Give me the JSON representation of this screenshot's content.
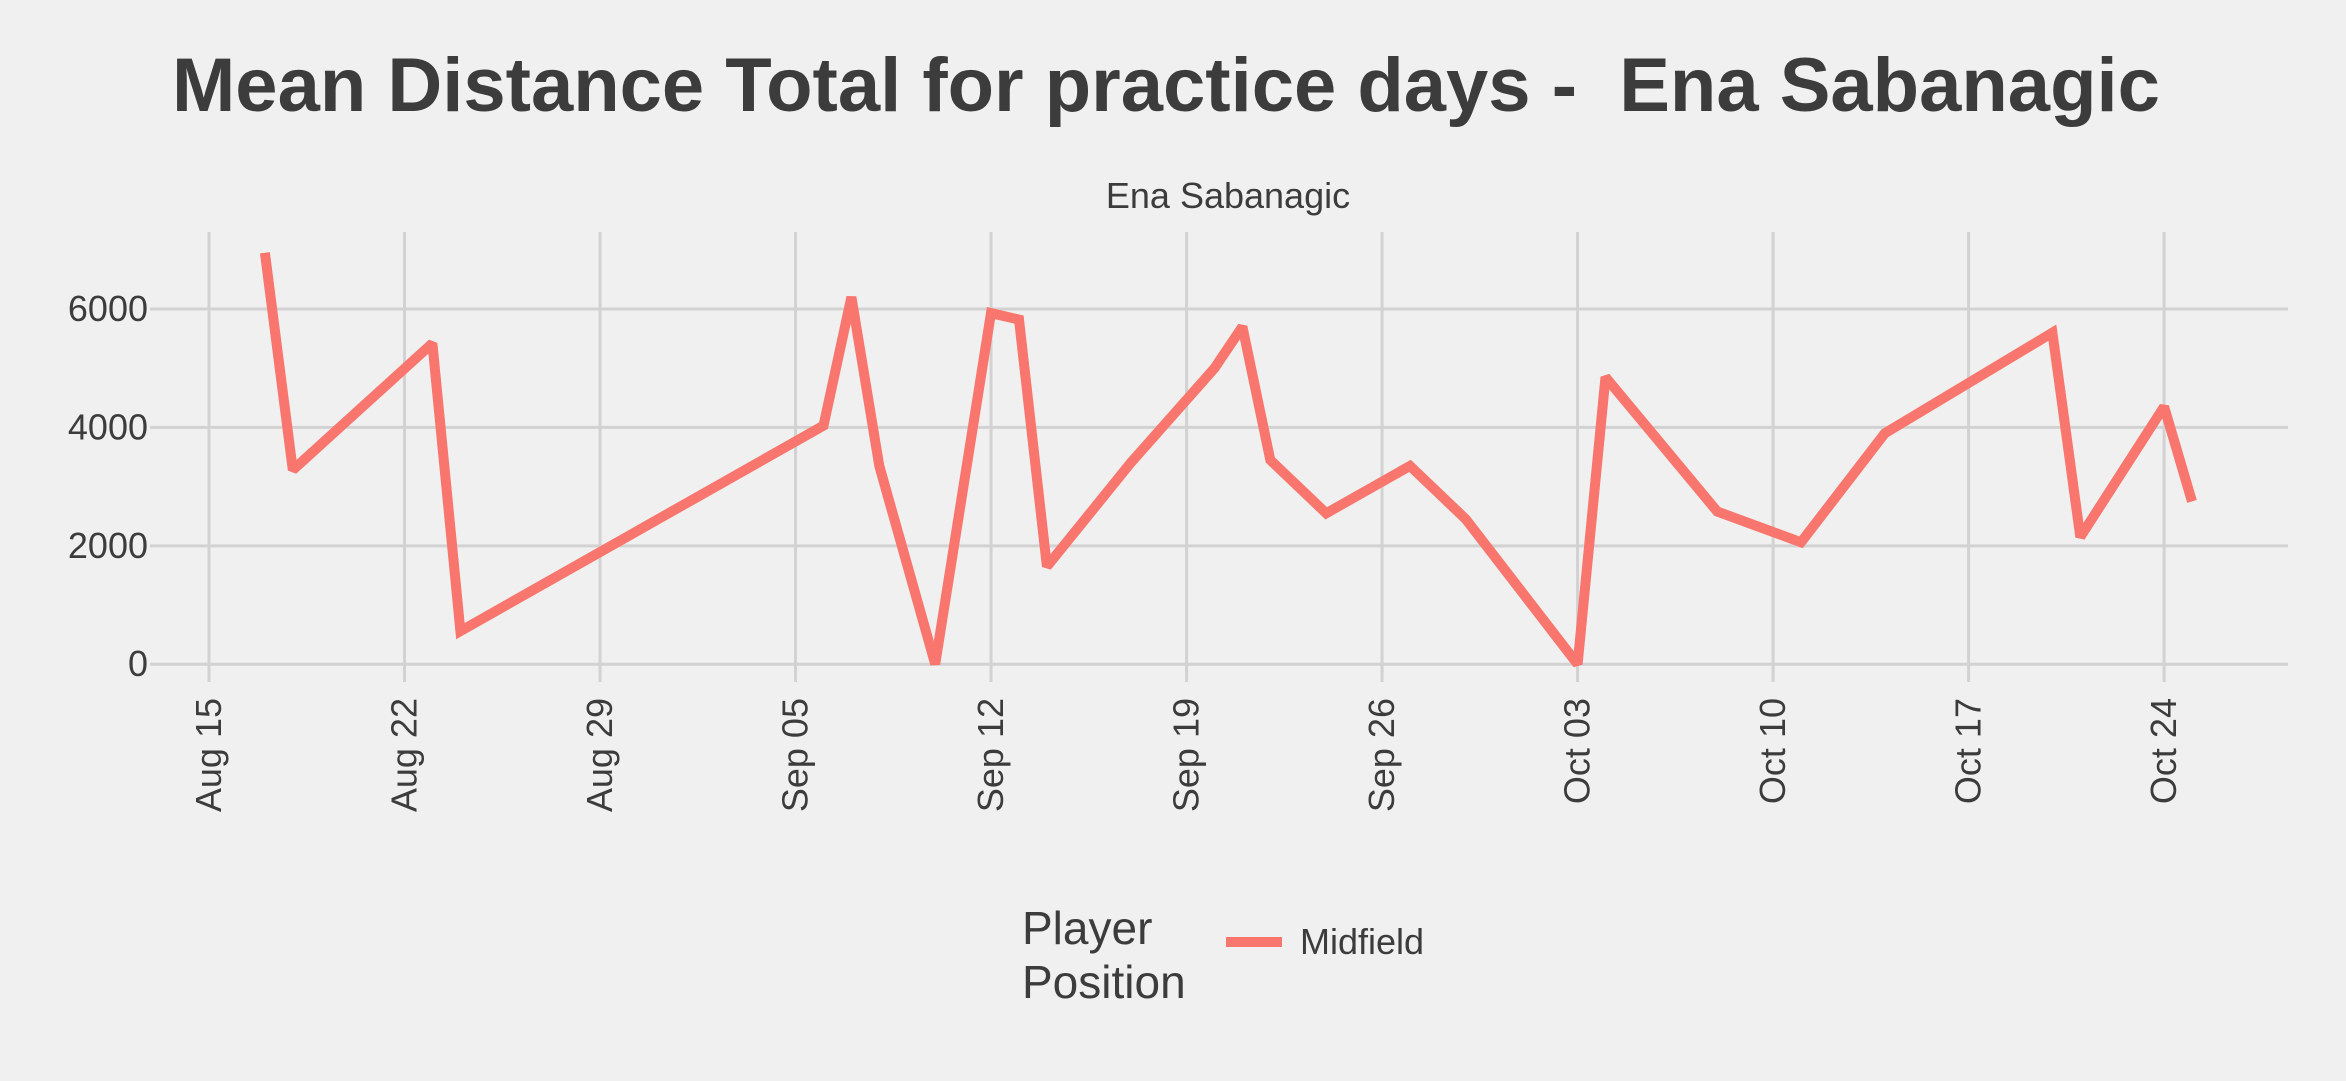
{
  "chart_data": {
    "type": "line",
    "title": "Mean Distance Total for practice days -  Ena Sabanagic",
    "facet_label": "Ena Sabanagic",
    "xlabel": "",
    "ylabel": "",
    "x_ticks": [
      "Aug 15",
      "Aug 22",
      "Aug 29",
      "Sep 05",
      "Sep 12",
      "Sep 19",
      "Sep 26",
      "Oct 03",
      "Oct 10",
      "Oct 17",
      "Oct 24"
    ],
    "x_tick_dates": [
      "2022-08-15",
      "2022-08-22",
      "2022-08-29",
      "2022-09-05",
      "2022-09-12",
      "2022-09-19",
      "2022-09-26",
      "2022-10-03",
      "2022-10-10",
      "2022-10-17",
      "2022-10-24"
    ],
    "y_ticks": [
      0,
      2000,
      4000,
      6000
    ],
    "ylim": [
      -300,
      7300
    ],
    "xlim": [
      "2022-08-15",
      "2022-10-28"
    ],
    "grid": true,
    "legend_position": "bottom",
    "legend_title": "Player\nPosition",
    "series": [
      {
        "name": "Midfield",
        "color": "#f8766d",
        "points": [
          {
            "x": "2022-08-17",
            "y": 6950
          },
          {
            "x": "2022-08-18",
            "y": 3280
          },
          {
            "x": "2022-08-23",
            "y": 5420
          },
          {
            "x": "2022-08-24",
            "y": 560
          },
          {
            "x": "2022-09-06",
            "y": 4030
          },
          {
            "x": "2022-09-07",
            "y": 6200
          },
          {
            "x": "2022-09-08",
            "y": 3350
          },
          {
            "x": "2022-09-10",
            "y": 0
          },
          {
            "x": "2022-09-12",
            "y": 5930
          },
          {
            "x": "2022-09-13",
            "y": 5820
          },
          {
            "x": "2022-09-14",
            "y": 1650
          },
          {
            "x": "2022-09-17",
            "y": 3400
          },
          {
            "x": "2022-09-20",
            "y": 5000
          },
          {
            "x": "2022-09-21",
            "y": 5700
          },
          {
            "x": "2022-09-22",
            "y": 3450
          },
          {
            "x": "2022-09-24",
            "y": 2550
          },
          {
            "x": "2022-09-27",
            "y": 3350
          },
          {
            "x": "2022-09-29",
            "y": 2450
          },
          {
            "x": "2022-10-03",
            "y": 0
          },
          {
            "x": "2022-10-04",
            "y": 4850
          },
          {
            "x": "2022-10-08",
            "y": 2580
          },
          {
            "x": "2022-10-11",
            "y": 2060
          },
          {
            "x": "2022-10-14",
            "y": 3900
          },
          {
            "x": "2022-10-20",
            "y": 5600
          },
          {
            "x": "2022-10-21",
            "y": 2150
          },
          {
            "x": "2022-10-24",
            "y": 4350
          },
          {
            "x": "2022-10-25",
            "y": 2750
          }
        ]
      }
    ]
  }
}
